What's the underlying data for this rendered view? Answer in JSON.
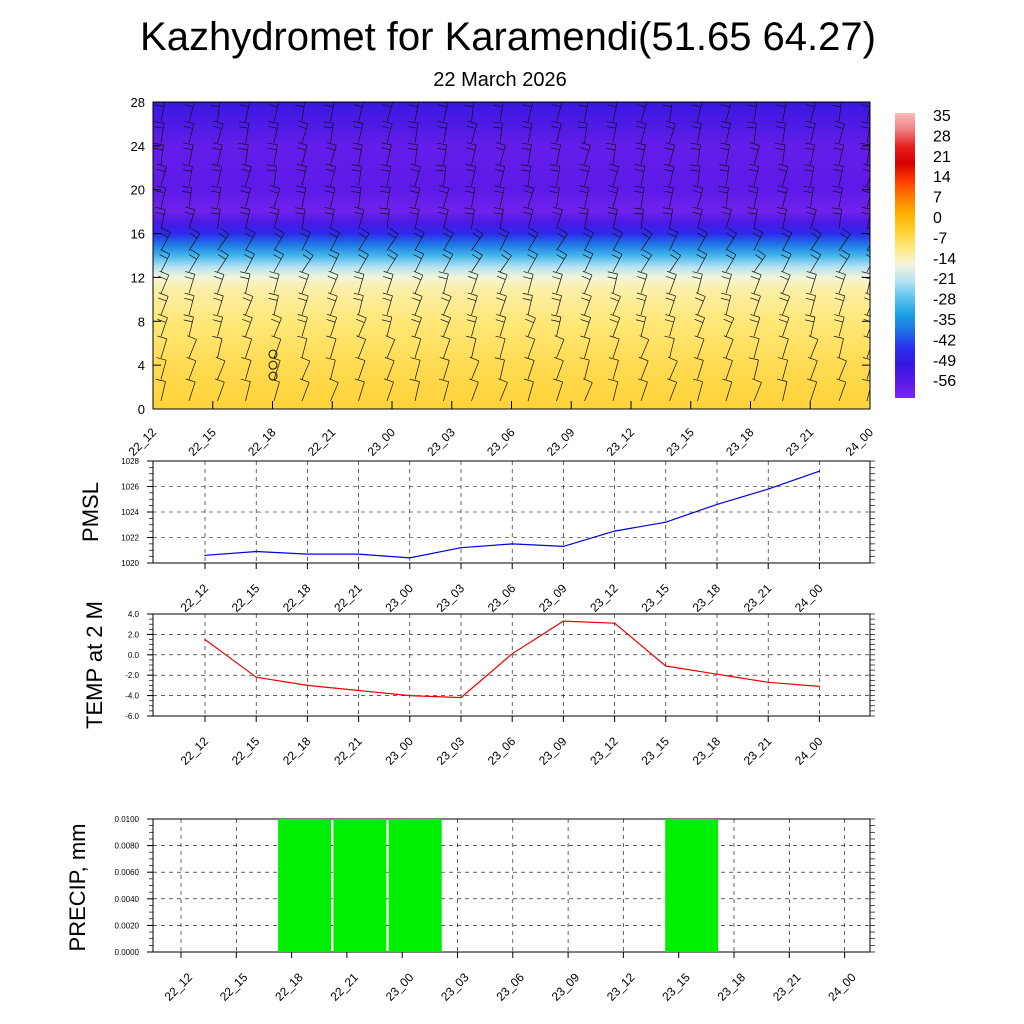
{
  "header": {
    "title": "Kazhydromet for Karamendi(51.65 64.27)",
    "date": "22 March 2026"
  },
  "time_labels": [
    "22_12",
    "22_15",
    "22_18",
    "22_21",
    "23_00",
    "23_03",
    "23_06",
    "23_09",
    "23_12",
    "23_15",
    "23_18",
    "23_21",
    "24_00"
  ],
  "colors": {
    "pmsl_line": "#0000dd",
    "temp_line": "#ee0000",
    "precip_bar": "#00ee00",
    "grid": "#000000"
  },
  "chart_data": [
    {
      "type": "heatmap",
      "name": "vertical-profile",
      "title": "",
      "ylabel": "",
      "y_ticks": [
        "0",
        "4",
        "8",
        "12",
        "16",
        "20",
        "24",
        "28"
      ],
      "ylim": [
        0,
        28
      ],
      "x_tick_labels": [
        "22_12",
        "22_15",
        "22_18",
        "22_21",
        "23_00",
        "23_03",
        "23_06",
        "23_09",
        "23_12",
        "23_15",
        "23_18",
        "23_21",
        "24_00"
      ],
      "colorbar_labels": [
        "35",
        "28",
        "21",
        "14",
        "7",
        "0",
        "-7",
        "-14",
        "-21",
        "-28",
        "-35",
        "-42",
        "-49",
        "-56"
      ],
      "colorbar_colors": [
        "#f7b9b9",
        "#f08080",
        "#e82020",
        "#d40000",
        "#ff3800",
        "#ff7a00",
        "#ffb000",
        "#ffd030",
        "#ffe87a",
        "#f6f5d8",
        "#b6e3f3",
        "#5fc4ee",
        "#1ca2e6",
        "#1f6fe5",
        "#2a2ff0",
        "#3418e0",
        "#5a18e8",
        "#7a28ee"
      ],
      "profile_levels": [
        0,
        4,
        8,
        11,
        12,
        13,
        14,
        15,
        16,
        17,
        18,
        20,
        24,
        28
      ],
      "profile_temps": [
        -3,
        -5,
        -8,
        -11,
        -14,
        -20,
        -28,
        -36,
        -44,
        -52,
        -58,
        -55,
        -56,
        -49
      ],
      "calm_marks": [
        3,
        4,
        5
      ]
    },
    {
      "type": "line",
      "name": "pmsl",
      "ylabel": "PMSL",
      "x": [
        "22_12",
        "22_15",
        "22_18",
        "22_21",
        "23_00",
        "23_03",
        "23_06",
        "23_09",
        "23_12",
        "23_15",
        "23_18",
        "23_21",
        "24_00"
      ],
      "values": [
        1020.6,
        1020.9,
        1020.7,
        1020.7,
        1020.4,
        1021.2,
        1021.5,
        1021.3,
        1022.5,
        1023.2,
        1024.6,
        1025.8,
        1027.2
      ],
      "ylim": [
        1020,
        1028
      ],
      "y_ticks": [
        1020,
        1022,
        1024,
        1026,
        1028
      ],
      "y_tick_labels": [
        "1020",
        "1022",
        "1024",
        "1026",
        "1028"
      ]
    },
    {
      "type": "line",
      "name": "temp-2m",
      "ylabel": "TEMP at 2 M",
      "x": [
        "22_12",
        "22_15",
        "22_18",
        "22_21",
        "23_00",
        "23_03",
        "23_06",
        "23_09",
        "23_12",
        "23_15",
        "23_18",
        "23_21",
        "24_00"
      ],
      "values": [
        1.5,
        -2.2,
        -3.0,
        -3.5,
        -4.0,
        -4.2,
        0.1,
        3.3,
        3.1,
        -1.1,
        -1.9,
        -2.7,
        -3.1
      ],
      "ylim": [
        -6,
        4
      ],
      "y_ticks": [
        -6,
        -4,
        -2,
        0,
        2,
        4
      ],
      "y_tick_labels": [
        "-6.0",
        "-4.0",
        "-2.0",
        "0.0",
        "2.0",
        "4.0"
      ]
    },
    {
      "type": "bar",
      "name": "precip",
      "ylabel": "PRECIP, mm",
      "categories": [
        "22_12",
        "22_15",
        "22_18",
        "22_21",
        "23_00",
        "23_03",
        "23_06",
        "23_09",
        "23_12",
        "23_15",
        "23_18",
        "23_21",
        "24_00"
      ],
      "values": [
        0,
        0,
        0.01,
        0.01,
        0.01,
        0,
        0,
        0,
        0,
        0.01,
        0,
        0,
        0
      ],
      "ylim": [
        0,
        0.01
      ],
      "y_ticks": [
        0,
        0.002,
        0.004,
        0.006,
        0.008,
        0.01
      ],
      "y_tick_labels": [
        "0.0000",
        "0.0020",
        "0.0040",
        "0.0060",
        "0.0080",
        "0.0100"
      ]
    }
  ]
}
